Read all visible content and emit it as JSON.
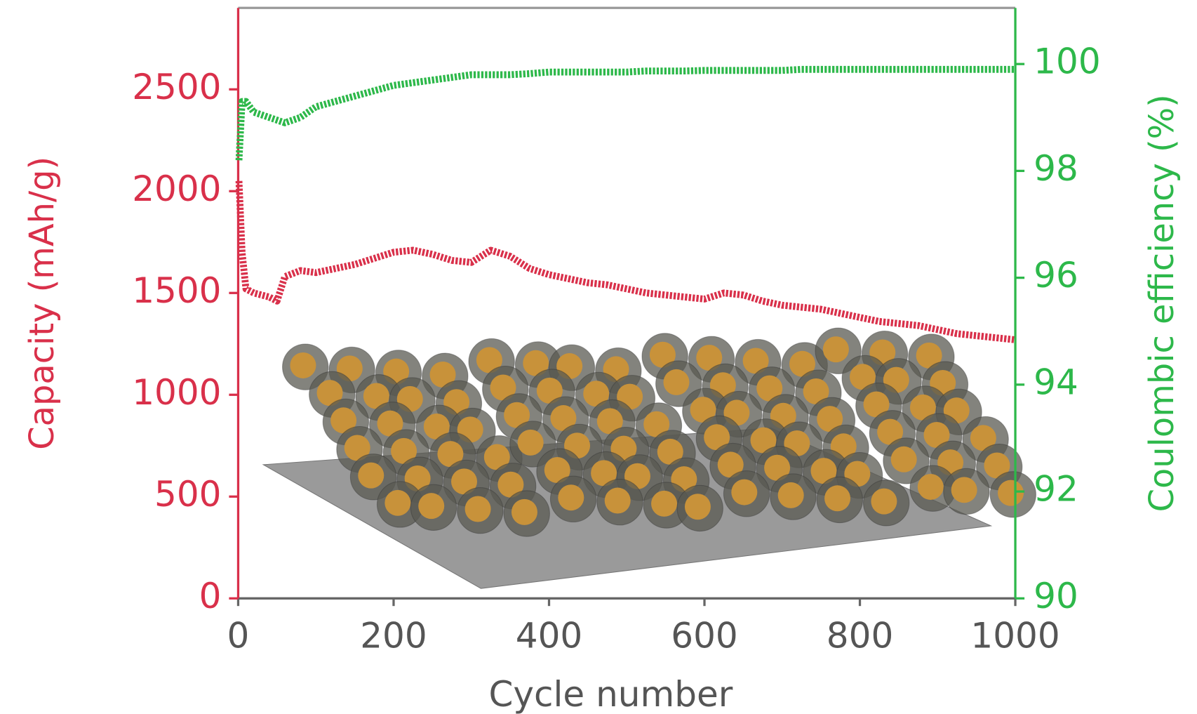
{
  "chart_data": {
    "type": "line",
    "x_label": "Cycle number",
    "y_label": "Capacity (mAh/g)",
    "y2_label": "Coulombic efficiency (%)",
    "x": [
      1,
      5,
      10,
      20,
      30,
      40,
      50,
      60,
      80,
      100,
      125,
      150,
      175,
      200,
      225,
      250,
      275,
      300,
      325,
      350,
      375,
      400,
      425,
      450,
      475,
      500,
      525,
      550,
      575,
      600,
      625,
      650,
      675,
      700,
      725,
      750,
      775,
      800,
      825,
      850,
      875,
      900,
      925,
      950,
      975,
      1000
    ],
    "series": [
      {
        "name": "Capacity",
        "color": "#d9304a",
        "axis": "y",
        "values": [
          2050,
          1700,
          1520,
          1500,
          1490,
          1480,
          1460,
          1580,
          1610,
          1600,
          1620,
          1640,
          1670,
          1700,
          1710,
          1690,
          1660,
          1650,
          1710,
          1680,
          1620,
          1590,
          1570,
          1550,
          1540,
          1520,
          1500,
          1490,
          1480,
          1470,
          1500,
          1490,
          1460,
          1440,
          1430,
          1420,
          1400,
          1380,
          1360,
          1350,
          1340,
          1320,
          1300,
          1290,
          1280,
          1270
        ]
      },
      {
        "name": "Coulombic efficiency",
        "color": "#2db84a",
        "axis": "y2",
        "values": [
          98.2,
          99.3,
          99.3,
          99.1,
          99.05,
          99.0,
          98.95,
          98.9,
          99.0,
          99.2,
          99.3,
          99.4,
          99.5,
          99.6,
          99.65,
          99.7,
          99.75,
          99.8,
          99.8,
          99.8,
          99.82,
          99.85,
          99.85,
          99.85,
          99.85,
          99.85,
          99.87,
          99.87,
          99.87,
          99.88,
          99.88,
          99.88,
          99.88,
          99.88,
          99.9,
          99.9,
          99.9,
          99.9,
          99.9,
          99.9,
          99.9,
          99.9,
          99.9,
          99.9,
          99.9,
          99.9
        ]
      }
    ],
    "xlim": [
      0,
      1000
    ],
    "xticks": [
      0,
      200,
      400,
      600,
      800,
      1000
    ],
    "ylim": [
      0,
      2900
    ],
    "yticks": [
      0,
      500,
      1000,
      1500,
      2000,
      2500
    ],
    "y2lim": [
      90,
      101.05
    ],
    "y2ticks": [
      90,
      92,
      94,
      96,
      98,
      100
    ]
  }
}
